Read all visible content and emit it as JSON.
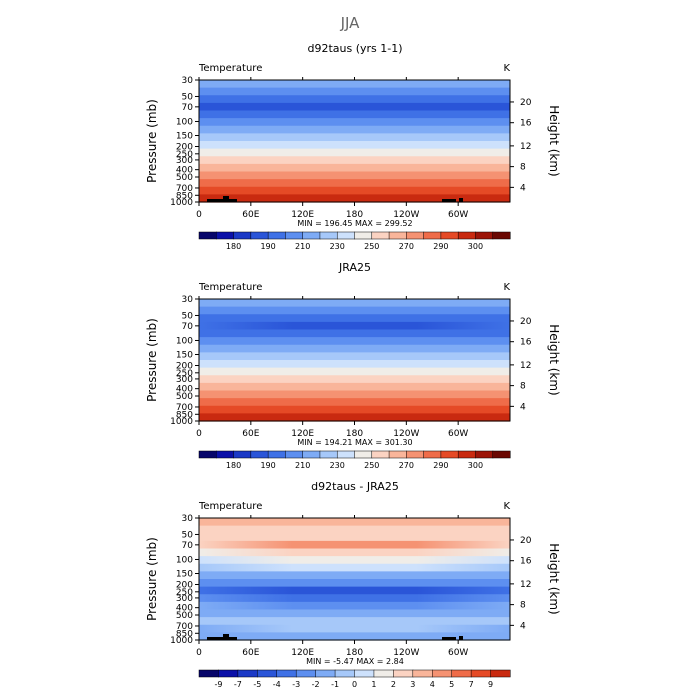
{
  "figure_title": "JJA",
  "chart_data": [
    {
      "type": "heatmap",
      "title": "d92taus (yrs 1-1)",
      "left_label": "Temperature",
      "units_label": "K",
      "ylabel": "Pressure (mb)",
      "ylabel_right": "Height (km)",
      "x_ticks": [
        "0",
        "60E",
        "120E",
        "180",
        "120W",
        "60W"
      ],
      "y_ticks": [
        "30",
        "50",
        "70",
        "100",
        "150",
        "200",
        "250",
        "300",
        "400",
        "500",
        "700",
        "850",
        "1000"
      ],
      "right_ticks": [
        "20",
        "16",
        "12",
        "8",
        "4"
      ],
      "stats": "MIN = 196.45   MAX = 299.52",
      "colorbar_ticks": [
        "180",
        "190",
        "210",
        "230",
        "250",
        "270",
        "290",
        "300"
      ],
      "colorbar_colors": [
        "#07066a",
        "#0b10a8",
        "#1b39c6",
        "#2a55d8",
        "#3f71e6",
        "#5d8ff0",
        "#7eabf5",
        "#a6c8f9",
        "#cde1fc",
        "#f0ede8",
        "#fbd3c2",
        "#f9b59a",
        "#f59272",
        "#ef6c49",
        "#e54a26",
        "#c92a10",
        "#9c1408",
        "#6a0802"
      ],
      "bands": [
        [
          "#7eabf5",
          "#7eabf5"
        ],
        [
          "#5d8ff0",
          "#5d8ff0"
        ],
        [
          "#3f71e6",
          "#3f71e6"
        ],
        [
          "#2a55d8",
          "#2a55d8"
        ],
        [
          "#3f71e6",
          "#3f71e6"
        ],
        [
          "#5d8ff0",
          "#5d8ff0"
        ],
        [
          "#7eabf5",
          "#7eabf5"
        ],
        [
          "#a6c8f9",
          "#a6c8f9"
        ],
        [
          "#cde1fc",
          "#cde1fc"
        ],
        [
          "#f0ede8",
          "#f0ede8"
        ],
        [
          "#fbd3c2",
          "#fbd3c2"
        ],
        [
          "#f9b59a",
          "#f9b59a"
        ],
        [
          "#f59272",
          "#f59272"
        ],
        [
          "#ef6c49",
          "#ef6c49"
        ],
        [
          "#e54a26",
          "#e54a26"
        ],
        [
          "#c92a10",
          "#c92a10"
        ]
      ],
      "terrain": true
    },
    {
      "type": "heatmap",
      "title": "JRA25",
      "left_label": "Temperature",
      "units_label": "K",
      "ylabel": "Pressure (mb)",
      "ylabel_right": "Height (km)",
      "x_ticks": [
        "0",
        "60E",
        "120E",
        "180",
        "120W",
        "60W"
      ],
      "y_ticks": [
        "30",
        "50",
        "70",
        "100",
        "150",
        "200",
        "250",
        "300",
        "400",
        "500",
        "700",
        "850",
        "1000"
      ],
      "right_ticks": [
        "20",
        "16",
        "12",
        "8",
        "4"
      ],
      "stats": "MIN = 194.21   MAX = 301.30",
      "colorbar_ticks": [
        "180",
        "190",
        "210",
        "230",
        "250",
        "270",
        "290",
        "300"
      ],
      "colorbar_colors": [
        "#07066a",
        "#0b10a8",
        "#1b39c6",
        "#2a55d8",
        "#3f71e6",
        "#5d8ff0",
        "#7eabf5",
        "#a6c8f9",
        "#cde1fc",
        "#f0ede8",
        "#fbd3c2",
        "#f9b59a",
        "#f59272",
        "#ef6c49",
        "#e54a26",
        "#c92a10",
        "#9c1408",
        "#6a0802"
      ],
      "bands": [
        [
          "#7eabf5",
          "#7eabf5"
        ],
        [
          "#5d8ff0",
          "#5d8ff0"
        ],
        [
          "#3f71e6",
          "#3f71e6"
        ],
        [
          "#3f71e6",
          "#2a55d8"
        ],
        [
          "#3f71e6",
          "#3f71e6"
        ],
        [
          "#5d8ff0",
          "#5d8ff0"
        ],
        [
          "#7eabf5",
          "#7eabf5"
        ],
        [
          "#a6c8f9",
          "#a6c8f9"
        ],
        [
          "#cde1fc",
          "#cde1fc"
        ],
        [
          "#f0ede8",
          "#f0ede8"
        ],
        [
          "#fbd3c2",
          "#fbd3c2"
        ],
        [
          "#f9b59a",
          "#f9b59a"
        ],
        [
          "#f59272",
          "#f59272"
        ],
        [
          "#ef6c49",
          "#ef6c49"
        ],
        [
          "#e54a26",
          "#e54a26"
        ],
        [
          "#c92a10",
          "#c92a10"
        ]
      ],
      "terrain": false
    },
    {
      "type": "heatmap",
      "title": "d92taus - JRA25",
      "left_label": "Temperature",
      "units_label": "K",
      "ylabel": "Pressure (mb)",
      "ylabel_right": "Height (km)",
      "x_ticks": [
        "0",
        "60E",
        "120E",
        "180",
        "120W",
        "60W"
      ],
      "y_ticks": [
        "30",
        "50",
        "70",
        "100",
        "150",
        "200",
        "250",
        "300",
        "400",
        "500",
        "700",
        "850",
        "1000"
      ],
      "right_ticks": [
        "20",
        "16",
        "12",
        "8",
        "4"
      ],
      "stats": "MIN =   -5.47   MAX =     2.84",
      "colorbar_ticks": [
        "-9",
        "-7",
        "-5",
        "-4",
        "-3",
        "-2",
        "-1",
        "0",
        "1",
        "2",
        "3",
        "4",
        "5",
        "7",
        "9"
      ],
      "colorbar_colors": [
        "#07066a",
        "#0b10a8",
        "#1b39c6",
        "#2a55d8",
        "#3f71e6",
        "#5d8ff0",
        "#7eabf5",
        "#a6c8f9",
        "#cde1fc",
        "#f0ede8",
        "#fbd3c2",
        "#f9b59a",
        "#f59272",
        "#ef6c49",
        "#e54a26",
        "#c92a10"
      ],
      "bands": [
        [
          "#f9b59a",
          "#f9b59a"
        ],
        [
          "#fbd3c2",
          "#fbd3c2"
        ],
        [
          "#fbd3c2",
          "#fbd3c2"
        ],
        [
          "#fbd3c2",
          "#f59272"
        ],
        [
          "#f0ede8",
          "#fbd3c2"
        ],
        [
          "#cde1fc",
          "#f0ede8"
        ],
        [
          "#a6c8f9",
          "#cde1fc"
        ],
        [
          "#7eabf5",
          "#7eabf5"
        ],
        [
          "#5d8ff0",
          "#5d8ff0"
        ],
        [
          "#3f71e6",
          "#2a55d8"
        ],
        [
          "#5d8ff0",
          "#3f71e6"
        ],
        [
          "#7eabf5",
          "#5d8ff0"
        ],
        [
          "#7eabf5",
          "#7eabf5"
        ],
        [
          "#a6c8f9",
          "#a6c8f9"
        ],
        [
          "#7eabf5",
          "#a6c8f9"
        ],
        [
          "#7eabf5",
          "#7eabf5"
        ]
      ],
      "terrain": true
    }
  ]
}
